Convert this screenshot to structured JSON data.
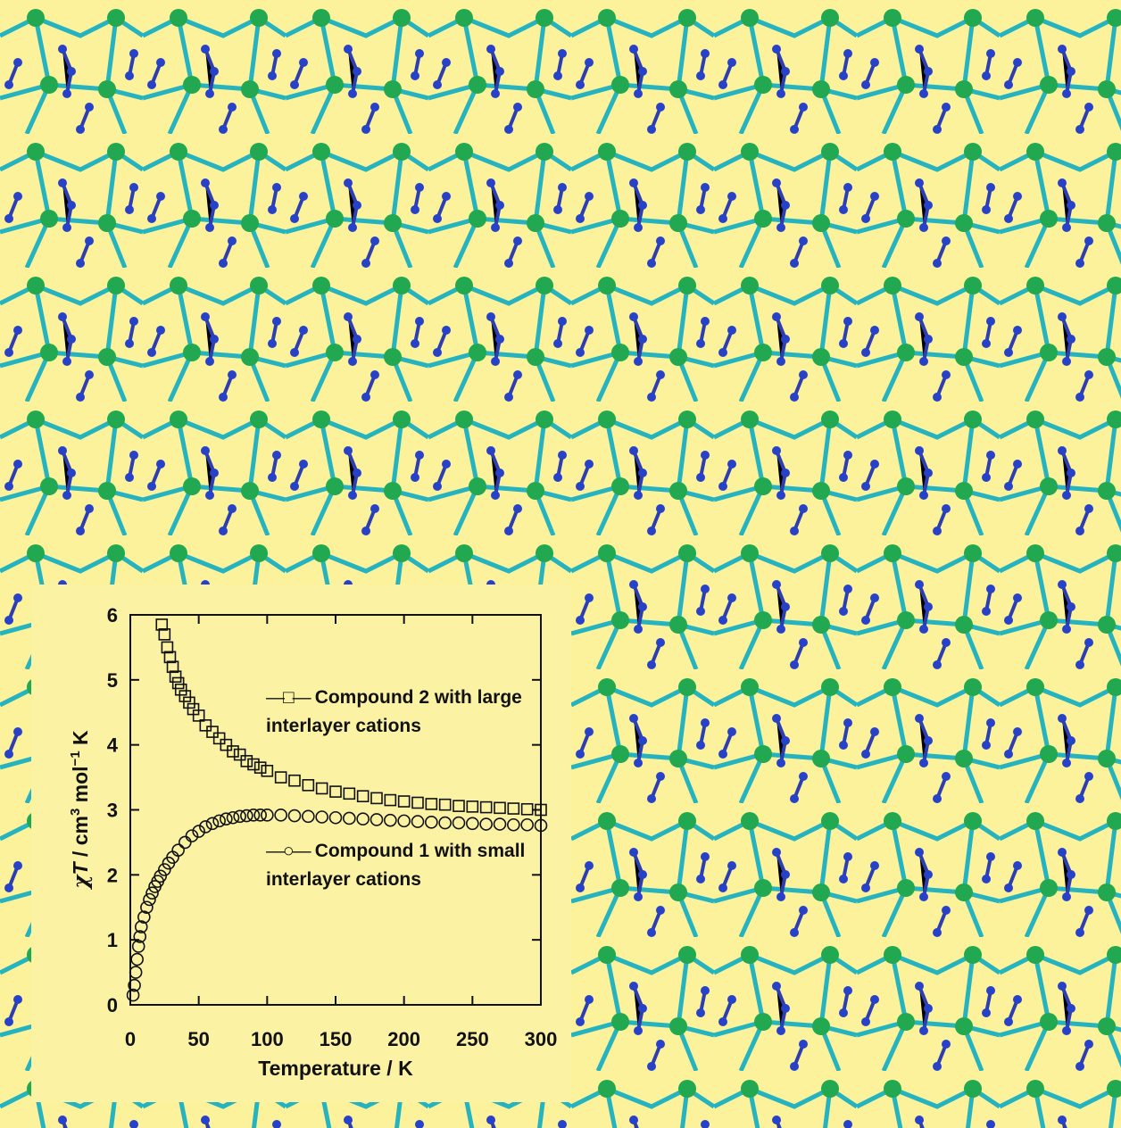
{
  "chart_data": {
    "type": "scatter",
    "xlabel": "Temperature / K",
    "ylabel": [
      "χ",
      "T",
      " / cm",
      "3",
      " mol",
      "−1",
      " K"
    ],
    "xlim": [
      0,
      300
    ],
    "xticks": [
      0,
      50,
      100,
      150,
      200,
      250,
      300
    ],
    "ylim": [
      0,
      6
    ],
    "yticks": [
      0,
      1,
      2,
      3,
      4,
      5,
      6
    ],
    "series": [
      {
        "name": "Compound 2 with large interlayer cations",
        "marker": "square",
        "color": "#111111",
        "x": [
          23,
          25,
          27,
          29,
          31,
          33,
          35,
          37,
          40,
          43,
          46,
          50,
          55,
          60,
          65,
          70,
          75,
          80,
          85,
          90,
          95,
          100,
          110,
          120,
          130,
          140,
          150,
          160,
          170,
          180,
          190,
          200,
          210,
          220,
          230,
          240,
          250,
          260,
          270,
          280,
          290,
          300
        ],
        "values": [
          5.85,
          5.7,
          5.5,
          5.35,
          5.2,
          5.05,
          4.95,
          4.85,
          4.75,
          4.65,
          4.55,
          4.45,
          4.3,
          4.2,
          4.1,
          4.0,
          3.9,
          3.85,
          3.75,
          3.7,
          3.65,
          3.6,
          3.5,
          3.45,
          3.38,
          3.33,
          3.28,
          3.25,
          3.21,
          3.18,
          3.15,
          3.13,
          3.11,
          3.09,
          3.08,
          3.06,
          3.05,
          3.04,
          3.03,
          3.02,
          3.01,
          3.0
        ]
      },
      {
        "name": "Compound 1 with small interlayer cations",
        "marker": "circle",
        "color": "#111111",
        "x": [
          2,
          3,
          4,
          5,
          6,
          7,
          8,
          10,
          12,
          14,
          16,
          18,
          20,
          22,
          25,
          28,
          31,
          35,
          40,
          45,
          50,
          55,
          60,
          65,
          70,
          75,
          80,
          85,
          90,
          95,
          100,
          110,
          120,
          130,
          140,
          150,
          160,
          170,
          180,
          190,
          200,
          210,
          220,
          230,
          240,
          250,
          260,
          270,
          280,
          290,
          300
        ],
        "values": [
          0.15,
          0.3,
          0.5,
          0.7,
          0.9,
          1.05,
          1.2,
          1.35,
          1.5,
          1.62,
          1.72,
          1.82,
          1.9,
          1.98,
          2.08,
          2.18,
          2.27,
          2.38,
          2.5,
          2.6,
          2.67,
          2.74,
          2.79,
          2.83,
          2.86,
          2.88,
          2.9,
          2.91,
          2.92,
          2.92,
          2.92,
          2.92,
          2.91,
          2.9,
          2.89,
          2.88,
          2.87,
          2.86,
          2.85,
          2.84,
          2.83,
          2.82,
          2.81,
          2.8,
          2.8,
          2.79,
          2.78,
          2.78,
          2.77,
          2.77,
          2.76
        ]
      }
    ]
  }
}
